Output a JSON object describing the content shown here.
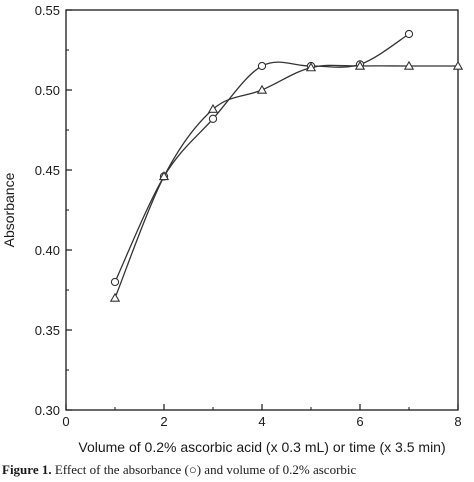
{
  "chart_data": {
    "type": "line",
    "title": "",
    "xlabel": "Volume of 0.2% ascorbic acid (x 0.3 mL) or time (x 3.5 min)",
    "ylabel": "Absorbance",
    "xlim": [
      0,
      8
    ],
    "ylim": [
      0.3,
      0.55
    ],
    "x_ticks": [
      "0",
      "2",
      "4",
      "6",
      "8"
    ],
    "y_ticks": [
      "0.30",
      "0.35",
      "0.40",
      "0.45",
      "0.50",
      "0.55"
    ],
    "grid": false,
    "legend": "none",
    "series": [
      {
        "marker": "circle",
        "color": "#333333",
        "x": [
          1,
          2,
          3,
          4,
          5,
          6,
          7
        ],
        "values": [
          0.38,
          0.446,
          0.482,
          0.515,
          0.515,
          0.516,
          0.535
        ]
      },
      {
        "marker": "triangle",
        "color": "#333333",
        "x": [
          1,
          2,
          3,
          4,
          5,
          6,
          7,
          8
        ],
        "values": [
          0.37,
          0.446,
          0.488,
          0.5,
          0.514,
          0.515,
          0.515,
          0.515
        ]
      }
    ]
  },
  "caption": {
    "label": "Figure 1.",
    "text": "Effect of the absorbance (○) and volume of 0.2% ascorbic"
  }
}
